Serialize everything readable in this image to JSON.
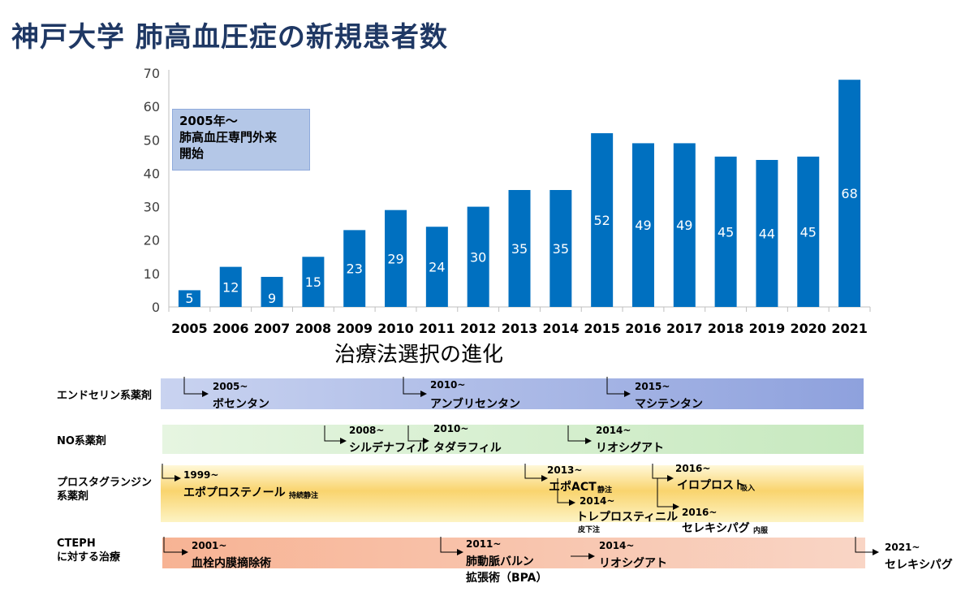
{
  "page": {
    "title": "神戸大学 肺高血圧症の新規患者数",
    "callout": [
      "2005年～",
      "肺高血圧専門外来",
      "開始"
    ],
    "subtitle": "治療法選択の進化"
  },
  "chart_data": {
    "type": "bar",
    "title": "",
    "xlabel": "",
    "ylabel": "",
    "categories": [
      "2005",
      "2006",
      "2007",
      "2008",
      "2009",
      "2010",
      "2011",
      "2012",
      "2013",
      "2014",
      "2015",
      "2016",
      "2017",
      "2018",
      "2019",
      "2020",
      "2021"
    ],
    "values": [
      5,
      12,
      9,
      15,
      23,
      29,
      24,
      30,
      35,
      35,
      52,
      49,
      49,
      45,
      44,
      45,
      68
    ],
    "ylim": [
      0,
      70
    ],
    "yticks": [
      0,
      10,
      20,
      30,
      40,
      50,
      60,
      70
    ],
    "bar_color": "#0070c0",
    "grid": false,
    "data_labels": true
  },
  "timeline": {
    "rows": [
      {
        "label": [
          "エンドセリン系薬剤"
        ],
        "items": [
          {
            "year": "2005~",
            "drug": "ボセンタン"
          },
          {
            "year": "2010~",
            "drug": "アンブリセンタン"
          },
          {
            "year": "2015~",
            "drug": "マシテンタン"
          }
        ]
      },
      {
        "label": [
          "NO系薬剤"
        ],
        "items": [
          {
            "year": "2008~",
            "drug": "シルデナフィル"
          },
          {
            "year": "2010~",
            "drug": "タダラフィル"
          },
          {
            "year": "2014~",
            "drug": "リオシグアト"
          }
        ]
      },
      {
        "label": [
          "プロスタグランジン",
          "系薬剤"
        ],
        "items": [
          {
            "year": "1999~",
            "drug": "エポプロステノール",
            "note": "持続静注"
          },
          {
            "year": "2013~",
            "drug": "エポACT",
            "note": "静注"
          },
          {
            "year": "2014~",
            "drug": "トレプロスティニル",
            "note": "皮下注"
          },
          {
            "year": "2016~",
            "drug": "イロプロスト",
            "note": "吸入"
          },
          {
            "year": "2016~",
            "drug": "セレキシパグ",
            "note": "内服"
          }
        ]
      },
      {
        "label": [
          "CTEPH",
          "に対する治療"
        ],
        "items": [
          {
            "year": "2001~",
            "drug": "血栓内膜摘除術"
          },
          {
            "year": "2011~",
            "drug": [
              "肺動脈バルン",
              "拡張術（BPA）"
            ]
          },
          {
            "year": "2014~",
            "drug": "リオシグアト"
          },
          {
            "year": "2021~",
            "drug": "セレキシパグ"
          }
        ]
      }
    ]
  }
}
